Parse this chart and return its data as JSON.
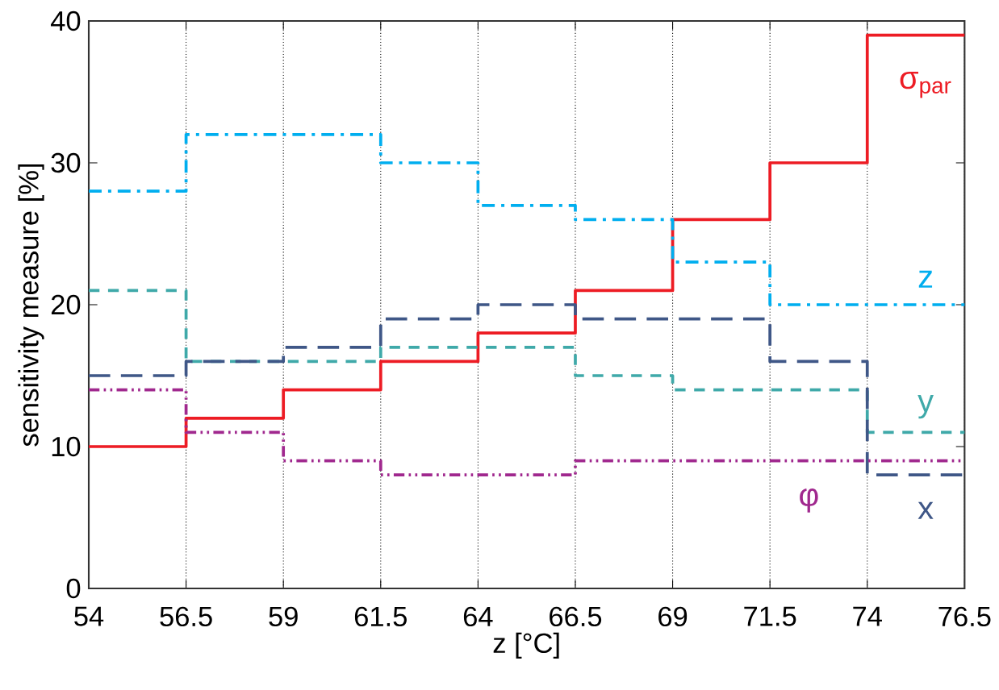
{
  "chart_data": {
    "type": "step",
    "xlabel": "z [°C]",
    "ylabel": "sensitivity measure [%]",
    "x": [
      54,
      56.5,
      59,
      61.5,
      64,
      66.5,
      69,
      71.5,
      74,
      76.5
    ],
    "series": [
      {
        "name": "σ$_{par}$",
        "color": "#ed1c24",
        "line_style": "solid",
        "values": [
          10,
          12,
          14,
          16,
          18,
          21,
          26,
          30,
          39,
          39
        ]
      },
      {
        "name": "z",
        "color": "#00aeef",
        "line_style": "dashdot",
        "values": [
          28,
          32,
          32,
          30,
          27,
          26,
          23,
          20,
          20,
          20
        ]
      },
      {
        "name": "y",
        "color": "#3fa9a9",
        "line_style": "dashed",
        "values": [
          21,
          16,
          16,
          17,
          17,
          15,
          14,
          14,
          11,
          11
        ]
      },
      {
        "name": "x",
        "color": "#3f5787",
        "line_style": "longdashed",
        "values": [
          15,
          16,
          17,
          19,
          20,
          19,
          19,
          16,
          8,
          8
        ]
      },
      {
        "name": "φ",
        "color": "#a0288e",
        "line_style": "dashdotdot",
        "values": [
          14,
          11,
          9,
          8,
          8,
          9,
          9,
          9,
          9,
          9
        ]
      }
    ],
    "xlim": [
      54,
      76.5
    ],
    "ylim": [
      0,
      40
    ],
    "xticks": [
      54,
      56.5,
      59,
      61.5,
      64,
      66.5,
      69,
      71.5,
      74,
      76.5
    ],
    "yticks": [
      0,
      10,
      20,
      30,
      40
    ],
    "grid": "x",
    "marker": "none"
  }
}
